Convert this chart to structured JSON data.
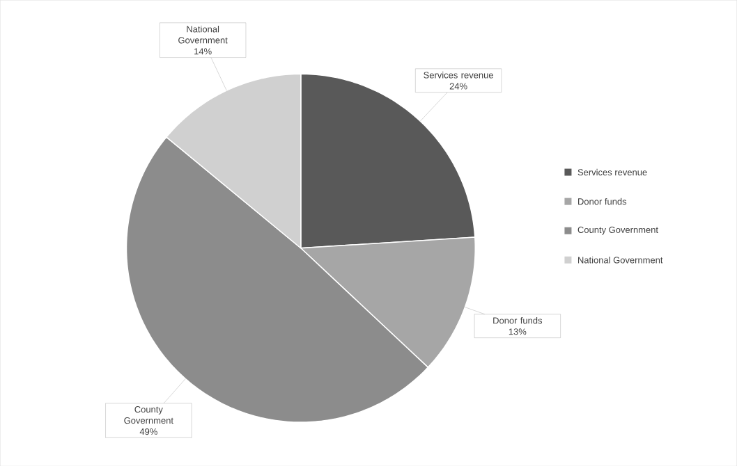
{
  "chart_data": {
    "type": "pie",
    "categories": [
      "Services revenue",
      "Donor funds",
      "County Government",
      "National Government"
    ],
    "values": [
      24,
      13,
      49,
      14
    ],
    "value_labels": [
      "24%",
      "13%",
      "49%",
      "14%"
    ],
    "colors": [
      "#595959",
      "#a6a6a6",
      "#8c8c8c",
      "#d0d0d0"
    ],
    "legend": "right"
  }
}
